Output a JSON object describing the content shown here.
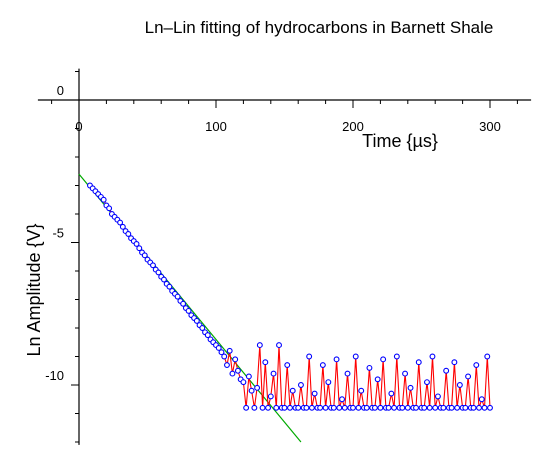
{
  "chart_data": {
    "type": "scatter",
    "title": "Ln–Lin fitting of hydrocarbons in Barnett Shale",
    "xlabel": "Time {µs}",
    "ylabel": "Ln Amplitude {V}",
    "xlim": [
      0,
      330
    ],
    "ylim": [
      -12.1,
      1.1
    ],
    "x_ticks": [
      {
        "value": 0,
        "label": "0"
      },
      {
        "value": 100,
        "label": "100"
      },
      {
        "value": 200,
        "label": "200"
      },
      {
        "value": 300,
        "label": "300"
      }
    ],
    "y_ticks": [
      {
        "value": 0,
        "label": "0"
      },
      {
        "value": -5,
        "label": "-5"
      },
      {
        "value": -10,
        "label": "-10"
      }
    ],
    "grid": false,
    "legend": "none",
    "colors": {
      "data_line": "#ff0000",
      "markers": "#0000ff",
      "fit_line": "#00aa00",
      "axes": "#000000"
    },
    "fit_line": {
      "x": [
        0,
        162
      ],
      "y": [
        -2.6,
        -12.0
      ]
    },
    "series": [
      {
        "x": [
          8,
          10,
          12,
          14,
          16,
          18,
          20,
          22,
          24,
          26,
          28,
          30,
          32,
          34,
          36,
          38,
          40,
          42,
          44,
          46,
          48,
          50,
          52,
          54,
          56,
          58,
          60,
          62,
          64,
          66,
          68,
          70,
          72,
          74,
          76,
          78,
          80,
          82,
          84,
          86,
          88,
          90,
          92,
          94,
          96,
          98,
          100,
          102,
          104,
          106,
          108,
          110,
          112,
          114,
          116,
          118,
          120,
          122,
          124,
          126,
          128,
          130,
          132,
          134,
          136,
          138,
          140,
          142,
          144,
          146,
          148,
          150,
          152,
          154,
          156,
          158,
          160,
          162,
          164,
          166,
          168,
          170,
          172,
          174,
          176,
          178,
          180,
          182,
          184,
          186,
          188,
          190,
          192,
          194,
          196,
          198,
          200,
          202,
          204,
          206,
          208,
          210,
          212,
          214,
          216,
          218,
          220,
          222,
          224,
          226,
          228,
          230,
          232,
          234,
          236,
          238,
          240,
          242,
          244,
          246,
          248,
          250,
          252,
          254,
          256,
          258,
          260,
          262,
          264,
          266,
          268,
          270,
          272,
          274,
          276,
          278,
          280,
          282,
          284,
          286,
          288,
          290,
          292,
          294,
          296,
          298,
          300
        ],
        "y": [
          -3.0,
          -3.1,
          -3.2,
          -3.3,
          -3.4,
          -3.5,
          -3.7,
          -3.8,
          -4.0,
          -4.1,
          -4.2,
          -4.3,
          -4.45,
          -4.6,
          -4.7,
          -4.85,
          -4.95,
          -5.05,
          -5.2,
          -5.35,
          -5.45,
          -5.6,
          -5.7,
          -5.8,
          -5.95,
          -6.05,
          -6.2,
          -6.3,
          -6.45,
          -6.55,
          -6.7,
          -6.8,
          -6.9,
          -7.05,
          -7.15,
          -7.3,
          -7.4,
          -7.55,
          -7.65,
          -7.75,
          -7.9,
          -8.0,
          -8.15,
          -8.25,
          -8.4,
          -8.5,
          -8.6,
          -8.7,
          -8.85,
          -9.0,
          -9.3,
          -8.8,
          -9.6,
          -9.1,
          -9.5,
          -9.8,
          -9.9,
          -10.8,
          -9.7,
          -10.2,
          -10.8,
          -10.1,
          -8.6,
          -10.8,
          -9.2,
          -10.8,
          -10.4,
          -9.6,
          -10.8,
          -8.6,
          -10.8,
          -10.8,
          -9.3,
          -10.8,
          -10.2,
          -10.8,
          -10.8,
          -10.0,
          -10.8,
          -10.8,
          -9.0,
          -10.8,
          -10.3,
          -10.8,
          -10.8,
          -9.3,
          -10.8,
          -9.9,
          -10.8,
          -10.8,
          -9.1,
          -10.8,
          -10.5,
          -10.8,
          -9.6,
          -10.8,
          -10.8,
          -9.0,
          -10.8,
          -10.2,
          -10.8,
          -10.8,
          -9.4,
          -10.8,
          -10.8,
          -9.8,
          -10.8,
          -9.1,
          -10.8,
          -10.8,
          -10.3,
          -10.8,
          -9.0,
          -10.8,
          -10.8,
          -9.6,
          -10.8,
          -10.1,
          -10.8,
          -10.8,
          -9.2,
          -10.8,
          -10.8,
          -9.9,
          -10.8,
          -9.0,
          -10.8,
          -10.4,
          -10.8,
          -10.8,
          -9.5,
          -10.8,
          -10.8,
          -9.2,
          -10.8,
          -10.0,
          -10.8,
          -10.8,
          -9.7,
          -10.8,
          -10.8,
          -9.3,
          -10.8,
          -10.5,
          -10.8,
          -9.0,
          -10.8
        ]
      }
    ]
  }
}
